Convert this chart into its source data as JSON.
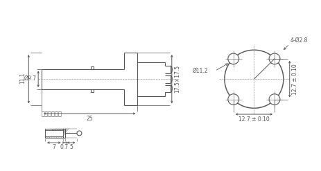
{
  "bg_color": "#ffffff",
  "line_color": "#555555",
  "font_size": 5.5,
  "label_11_1": "11.1",
  "label_9_7": "Ø9.7",
  "label_25": "25",
  "label_17_5x17_5": "17.5×17.5",
  "label_d2_8": "4-Ø2.8",
  "label_d11_2": "Ø11.2",
  "label_12_7_h": "12.7 ± 0.10",
  "label_12_7_v": "12.7 ± 0.10",
  "label_cable": "电缆剥线尺寸",
  "label_5": "5",
  "label_07": "0.7",
  "label_7": "7"
}
